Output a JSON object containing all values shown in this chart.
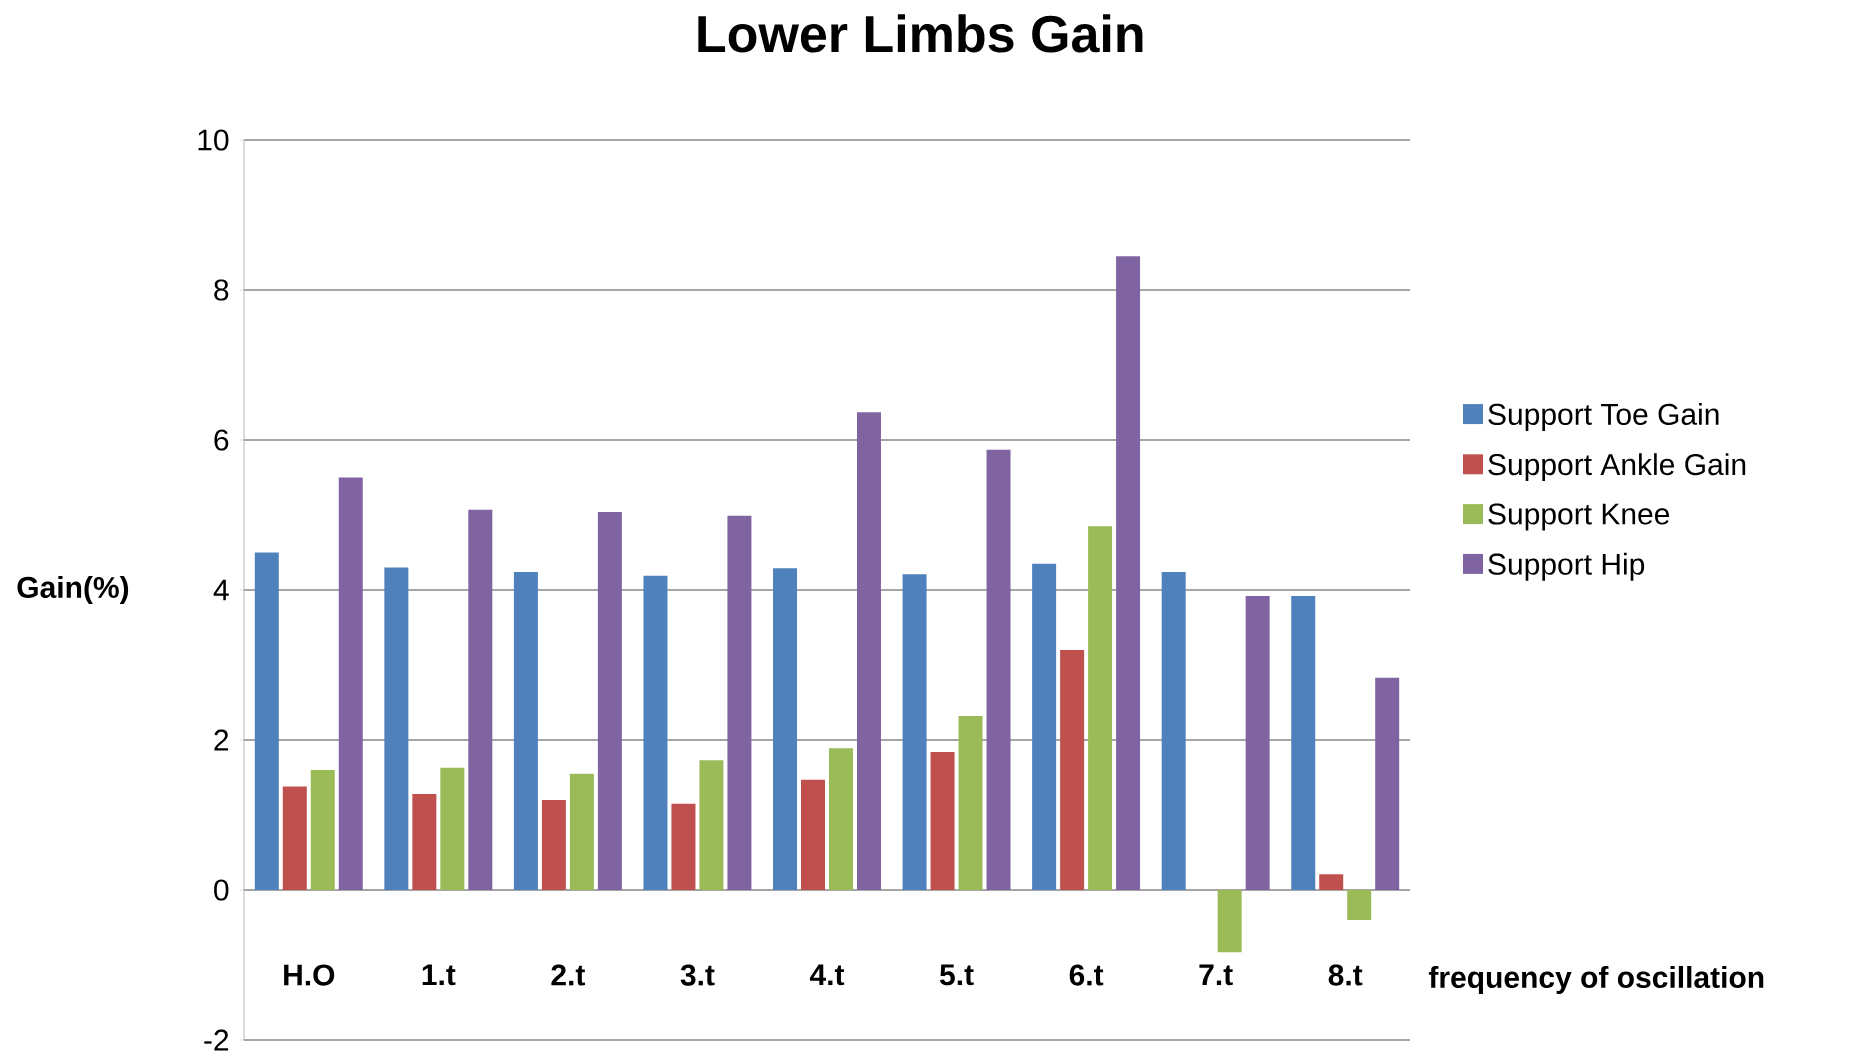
{
  "chart_data": {
    "type": "bar",
    "title": "Lower Limbs Gain",
    "xlabel": "frequency of oscillation",
    "ylabel": "Gain(%)",
    "categories": [
      "H.O",
      "1.t",
      "2.t",
      "3.t",
      "4.t",
      "5.t",
      "6.t",
      "7.t",
      "8.t"
    ],
    "series": [
      {
        "name": "Support Toe Gain",
        "color": "#4f81bd",
        "values": [
          4.5,
          4.3,
          4.24,
          4.19,
          4.29,
          4.21,
          4.35,
          4.24,
          3.92
        ]
      },
      {
        "name": "Support Ankle Gain",
        "color": "#c0504d",
        "values": [
          1.38,
          1.28,
          1.2,
          1.15,
          1.47,
          1.84,
          3.2,
          0,
          0.21
        ]
      },
      {
        "name": "Support Knee",
        "color": "#9bbb59",
        "values": [
          1.6,
          1.63,
          1.55,
          1.73,
          1.89,
          2.32,
          4.85,
          -0.83,
          -0.4
        ]
      },
      {
        "name": "Support Hip",
        "color": "#8064a2",
        "values": [
          5.5,
          5.07,
          5.04,
          4.99,
          6.37,
          5.87,
          8.45,
          3.92,
          2.83
        ]
      }
    ],
    "ylim": [
      -2,
      10
    ],
    "yticks": [
      -2,
      0,
      2,
      4,
      6,
      8,
      10
    ],
    "grid": "y",
    "legend": "right"
  }
}
